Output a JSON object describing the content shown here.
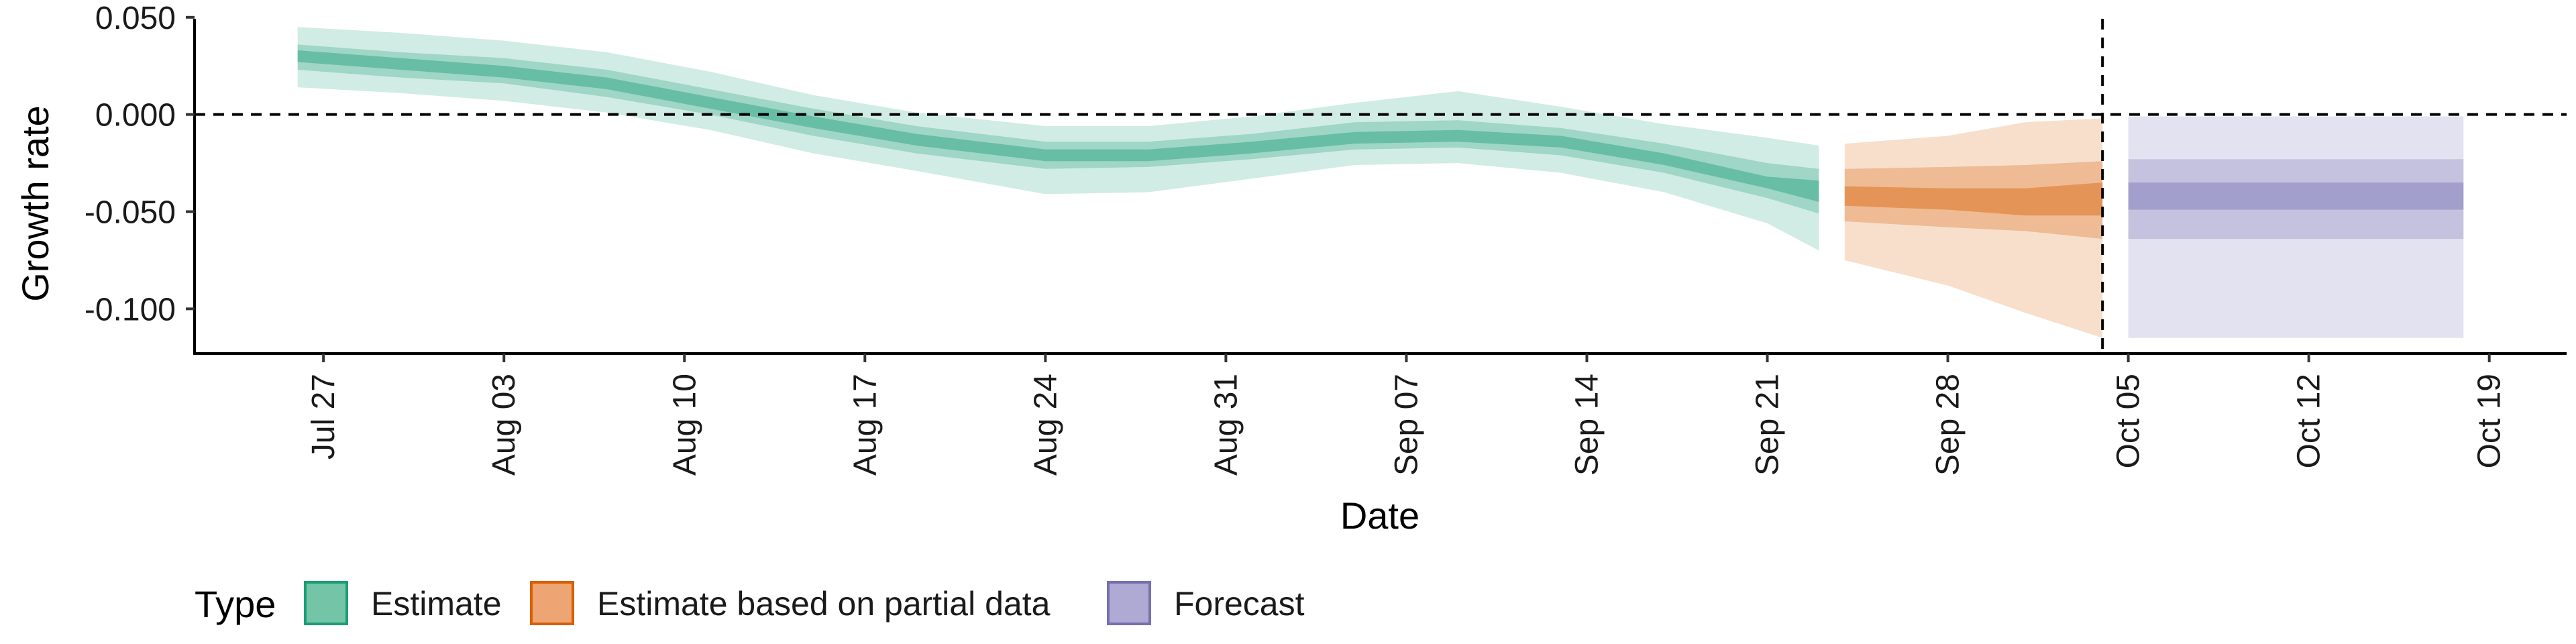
{
  "chart_data": {
    "type": "area",
    "title": "",
    "xlabel": "Date",
    "ylabel": "Growth rate",
    "x_axis": {
      "type": "date",
      "range": [
        "2020-07-22",
        "2020-10-22"
      ],
      "tick_dates": [
        "2020-07-27",
        "2020-08-03",
        "2020-08-10",
        "2020-08-17",
        "2020-08-24",
        "2020-08-31",
        "2020-09-07",
        "2020-09-14",
        "2020-09-21",
        "2020-09-28",
        "2020-10-05",
        "2020-10-12",
        "2020-10-19"
      ],
      "tick_labels": [
        "Jul 27",
        "Aug 03",
        "Aug 10",
        "Aug 17",
        "Aug 24",
        "Aug 31",
        "Sep 07",
        "Sep 14",
        "Sep 21",
        "Sep 28",
        "Oct 05",
        "Oct 12",
        "Oct 19"
      ]
    },
    "y_axis": {
      "range": [
        -0.123,
        0.052
      ],
      "ticks": [
        0.05,
        0.0,
        -0.05,
        -0.1
      ],
      "tick_labels": [
        "0.050",
        "0.000",
        "-0.050",
        "-0.100"
      ]
    },
    "reference_lines": [
      {
        "orientation": "horizontal",
        "value": 0.0,
        "style": "dashed"
      },
      {
        "orientation": "vertical",
        "value": "2020-10-04",
        "style": "dashed"
      }
    ],
    "legend": {
      "title": "Type",
      "placement": "bottom-left",
      "entries": [
        {
          "label": "Estimate",
          "fill": "#74c4a7",
          "border": "#1b9e77"
        },
        {
          "label": "Estimate based on partial data",
          "fill": "#eda574",
          "border": "#d95f02"
        },
        {
          "label": "Forecast",
          "fill": "#aeaad3",
          "border": "#7570b3"
        }
      ]
    },
    "series": [
      {
        "name": "Estimate",
        "band_colors": [
          "#1b9e77",
          "#1b9e77",
          "#1b9e77"
        ],
        "band_opacity": [
          0.2,
          0.28,
          0.42
        ],
        "points": [
          {
            "date": "2020-07-26",
            "lower90": 0.014,
            "lower50": 0.023,
            "lower20": 0.027,
            "upper20": 0.033,
            "upper50": 0.036,
            "upper90": 0.045
          },
          {
            "date": "2020-07-30",
            "lower90": 0.011,
            "lower50": 0.019,
            "lower20": 0.023,
            "upper20": 0.029,
            "upper50": 0.032,
            "upper90": 0.042
          },
          {
            "date": "2020-08-03",
            "lower90": 0.007,
            "lower50": 0.016,
            "lower20": 0.019,
            "upper20": 0.025,
            "upper50": 0.029,
            "upper90": 0.038
          },
          {
            "date": "2020-08-07",
            "lower90": 0.001,
            "lower50": 0.009,
            "lower20": 0.013,
            "upper20": 0.019,
            "upper50": 0.023,
            "upper90": 0.032
          },
          {
            "date": "2020-08-11",
            "lower90": -0.008,
            "lower50": 0.0,
            "lower20": 0.003,
            "upper20": 0.009,
            "upper50": 0.013,
            "upper90": 0.022
          },
          {
            "date": "2020-08-15",
            "lower90": -0.02,
            "lower50": -0.011,
            "lower20": -0.007,
            "upper20": -0.001,
            "upper50": 0.003,
            "upper90": 0.01
          },
          {
            "date": "2020-08-19",
            "lower90": -0.029,
            "lower50": -0.02,
            "lower20": -0.016,
            "upper20": -0.01,
            "upper50": -0.006,
            "upper90": 0.001
          },
          {
            "date": "2020-08-24",
            "lower90": -0.041,
            "lower50": -0.028,
            "lower20": -0.024,
            "upper20": -0.018,
            "upper50": -0.014,
            "upper90": -0.006
          },
          {
            "date": "2020-08-28",
            "lower90": -0.04,
            "lower50": -0.027,
            "lower20": -0.024,
            "upper20": -0.018,
            "upper50": -0.014,
            "upper90": -0.006
          },
          {
            "date": "2020-09-01",
            "lower90": -0.033,
            "lower50": -0.023,
            "lower20": -0.02,
            "upper20": -0.014,
            "upper50": -0.01,
            "upper90": -0.001
          },
          {
            "date": "2020-09-05",
            "lower90": -0.026,
            "lower50": -0.018,
            "lower20": -0.015,
            "upper20": -0.009,
            "upper50": -0.004,
            "upper90": 0.006
          },
          {
            "date": "2020-09-09",
            "lower90": -0.025,
            "lower50": -0.017,
            "lower20": -0.014,
            "upper20": -0.008,
            "upper50": -0.003,
            "upper90": 0.012
          },
          {
            "date": "2020-09-13",
            "lower90": -0.03,
            "lower50": -0.021,
            "lower20": -0.017,
            "upper20": -0.011,
            "upper50": -0.007,
            "upper90": 0.004
          },
          {
            "date": "2020-09-17",
            "lower90": -0.04,
            "lower50": -0.03,
            "lower20": -0.026,
            "upper20": -0.02,
            "upper50": -0.015,
            "upper90": -0.005
          },
          {
            "date": "2020-09-21",
            "lower90": -0.056,
            "lower50": -0.043,
            "lower20": -0.038,
            "upper20": -0.032,
            "upper50": -0.025,
            "upper90": -0.012
          },
          {
            "date": "2020-09-23",
            "lower90": -0.07,
            "lower50": -0.051,
            "lower20": -0.045,
            "upper20": -0.034,
            "upper50": -0.028,
            "upper90": -0.016
          }
        ]
      },
      {
        "name": "Estimate based on partial data",
        "band_colors": [
          "#d95f02",
          "#d95f02",
          "#d95f02"
        ],
        "band_opacity": [
          0.2,
          0.28,
          0.42
        ],
        "points": [
          {
            "date": "2020-09-24",
            "lower90": -0.075,
            "lower50": -0.055,
            "lower20": -0.047,
            "upper20": -0.037,
            "upper50": -0.028,
            "upper90": -0.015
          },
          {
            "date": "2020-09-28",
            "lower90": -0.088,
            "lower50": -0.058,
            "lower20": -0.049,
            "upper20": -0.038,
            "upper50": -0.027,
            "upper90": -0.011
          },
          {
            "date": "2020-10-01",
            "lower90": -0.102,
            "lower50": -0.06,
            "lower20": -0.052,
            "upper20": -0.038,
            "upper50": -0.026,
            "upper90": -0.004
          },
          {
            "date": "2020-10-04",
            "lower90": -0.115,
            "lower50": -0.064,
            "lower20": -0.052,
            "upper20": -0.035,
            "upper50": -0.024,
            "upper90": -0.002
          }
        ]
      },
      {
        "name": "Forecast",
        "band_colors": [
          "#7570b3",
          "#7570b3",
          "#7570b3"
        ],
        "band_opacity": [
          0.2,
          0.28,
          0.42
        ],
        "points": [
          {
            "date": "2020-10-05",
            "lower90": -0.115,
            "lower50": -0.064,
            "lower20": -0.049,
            "upper20": -0.035,
            "upper50": -0.023,
            "upper90": -0.001
          },
          {
            "date": "2020-10-18",
            "lower90": -0.115,
            "lower50": -0.064,
            "lower20": -0.049,
            "upper20": -0.035,
            "upper50": -0.023,
            "upper90": -0.001
          }
        ]
      }
    ]
  }
}
